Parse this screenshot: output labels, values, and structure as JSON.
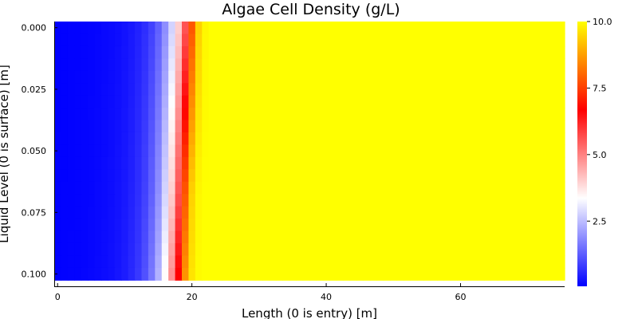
{
  "chart_data": {
    "type": "heatmap",
    "title": "Algae Cell Density (g/L)",
    "xlabel": "Length (0 is entry) [m]",
    "ylabel": "Liquid Level (0 is surface) [m]",
    "xlim": [
      -0.5,
      75.5
    ],
    "ylim": [
      0.105,
      -0.0025
    ],
    "x_ticks": [
      0,
      20,
      40,
      60
    ],
    "x_tick_labels": [
      "0",
      "20",
      "40",
      "60"
    ],
    "y_ticks": [
      0.0,
      0.025,
      0.05,
      0.075,
      0.1
    ],
    "y_tick_labels": [
      "0.000",
      "0.025",
      "0.050",
      "0.075",
      "0.100"
    ],
    "colorbar": {
      "min": 0.05,
      "max": 10.0,
      "colormap": [
        "#0000ff",
        "#ffffff",
        "#ff0000",
        "#ffff00"
      ],
      "ticks": [
        2.5,
        5.0,
        7.5,
        10.0
      ],
      "tick_labels": [
        "2.5",
        "5.0",
        "7.5",
        "10.0"
      ]
    },
    "x": [
      0,
      1,
      2,
      3,
      4,
      5,
      6,
      7,
      8,
      9,
      10,
      11,
      12,
      13,
      14,
      15,
      16,
      17,
      18,
      19,
      20,
      21,
      22,
      23,
      24,
      25,
      26,
      27,
      28,
      29,
      30,
      31,
      32,
      33,
      34,
      35,
      36,
      37,
      38,
      39,
      40,
      41,
      42,
      43,
      44,
      45,
      46,
      47,
      48,
      49,
      50,
      51,
      52,
      53,
      54,
      55,
      56,
      57,
      58,
      59,
      60,
      61,
      62,
      63,
      64,
      65,
      66,
      67,
      68,
      69,
      70,
      71,
      72,
      73,
      74,
      75
    ],
    "y": [
      0.0,
      0.005,
      0.01,
      0.015,
      0.02,
      0.025,
      0.03,
      0.035,
      0.04,
      0.045,
      0.05,
      0.055,
      0.06,
      0.065,
      0.07,
      0.075,
      0.08,
      0.085,
      0.09,
      0.095,
      0.1
    ],
    "profile_at_surface": [
      0.05,
      0.06,
      0.07,
      0.08,
      0.09,
      0.1,
      0.12,
      0.15,
      0.18,
      0.22,
      0.28,
      0.36,
      0.48,
      0.65,
      0.9,
      1.3,
      1.9,
      2.8,
      4.0,
      5.6,
      7.8,
      9.4,
      9.9,
      10.0,
      10.0,
      10.0,
      10.0,
      10.0,
      10.0,
      10.0,
      10.0,
      10.0,
      10.0,
      10.0,
      10.0,
      10.0,
      10.0,
      10.0,
      10.0,
      10.0,
      10.0,
      10.0,
      10.0,
      10.0,
      10.0,
      10.0,
      10.0,
      10.0,
      10.0,
      10.0,
      10.0,
      10.0,
      10.0,
      10.0,
      10.0,
      10.0,
      10.0,
      10.0,
      10.0,
      10.0,
      10.0,
      10.0,
      10.0,
      10.0,
      10.0,
      10.0,
      10.0,
      10.0,
      10.0,
      10.0,
      10.0,
      10.0,
      10.0,
      10.0,
      10.0,
      10.0
    ],
    "front_shift_at_bottom_m": -1.5
  }
}
